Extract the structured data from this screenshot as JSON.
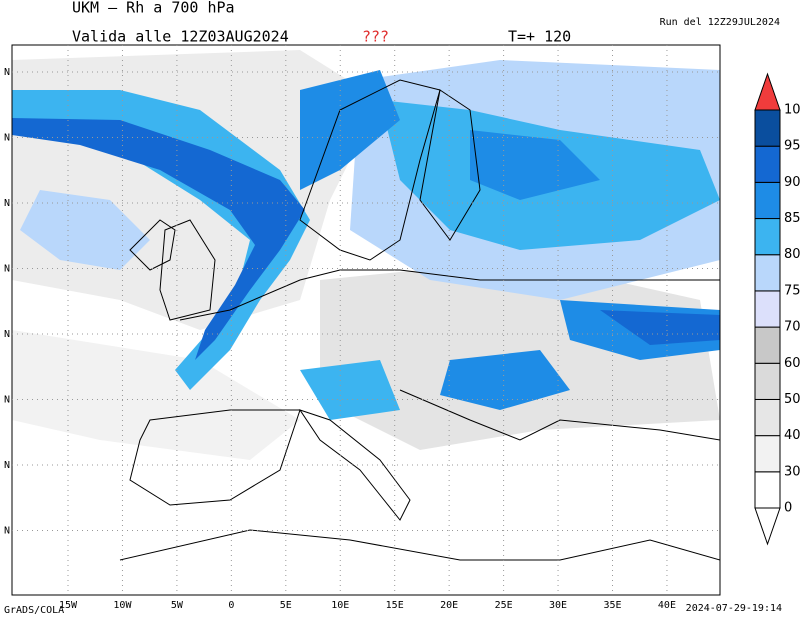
{
  "header": {
    "title": "UKM – Rh a 700 hPa",
    "valid": "Valida alle 12Z03AUG2024",
    "flag": "???",
    "step": "T=+ 120",
    "run": "Run del 12Z29JUL2024"
  },
  "map": {
    "lon_labels": [
      "15W",
      "10W",
      "5W",
      "0",
      "5E",
      "10E",
      "15E",
      "20E",
      "25E",
      "30E",
      "35E",
      "40E"
    ],
    "lat_labels": [
      "N",
      "N",
      "N",
      "N",
      "N",
      "N",
      "N",
      "N"
    ]
  },
  "colorbar": {
    "levels": [
      0,
      30,
      40,
      50,
      60,
      70,
      75,
      80,
      85,
      90,
      95,
      100
    ],
    "colors": [
      "#ffffff",
      "#f2f2f2",
      "#e6e6e6",
      "#dadada",
      "#c8c8c8",
      "#dce0fb",
      "#b9d7fb",
      "#3cb4f0",
      "#1e8ce6",
      "#1468d2",
      "#0a4e9e"
    ],
    "over_color": "#f03c3c",
    "under_color": "#ffffff"
  },
  "footer": {
    "left": "GrADS/COLA",
    "right": "2024-07-29-19:14"
  }
}
